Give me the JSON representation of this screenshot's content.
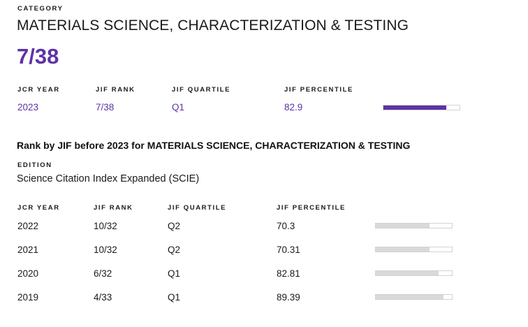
{
  "category": {
    "label": "CATEGORY",
    "name": "MATERIALS SCIENCE, CHARACTERIZATION & TESTING",
    "rank": "7/38"
  },
  "current": {
    "headers": {
      "year": "JCR YEAR",
      "rank": "JIF RANK",
      "quartile": "JIF QUARTILE",
      "percentile": "JIF PERCENTILE"
    },
    "year": "2023",
    "rank": "7/38",
    "quartile": "Q1",
    "percentile": "82.9",
    "percentile_value": 82.9,
    "bar_color": "#5e33a6"
  },
  "history": {
    "heading": "Rank by JIF before 2023 for MATERIALS SCIENCE, CHARACTERIZATION & TESTING",
    "edition_label": "EDITION",
    "edition_value": "Science Citation Index Expanded (SCIE)",
    "headers": {
      "year": "JCR YEAR",
      "rank": "JIF RANK",
      "quartile": "JIF QUARTILE",
      "percentile": "JIF PERCENTILE"
    },
    "bar_color": "#d9d9d9",
    "rows": [
      {
        "year": "2022",
        "rank": "10/32",
        "quartile": "Q2",
        "percentile": "70.3",
        "percentile_value": 70.3
      },
      {
        "year": "2021",
        "rank": "10/32",
        "quartile": "Q2",
        "percentile": "70.31",
        "percentile_value": 70.31
      },
      {
        "year": "2020",
        "rank": "6/32",
        "quartile": "Q1",
        "percentile": "82.81",
        "percentile_value": 82.81
      },
      {
        "year": "2019",
        "rank": "4/33",
        "quartile": "Q1",
        "percentile": "89.39",
        "percentile_value": 89.39
      }
    ]
  }
}
